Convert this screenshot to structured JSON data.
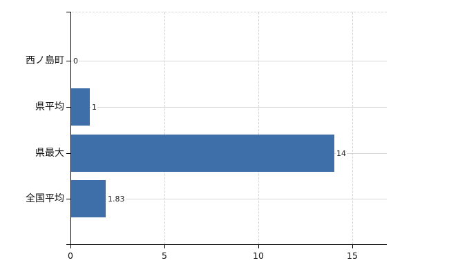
{
  "chart_data": {
    "type": "bar",
    "orientation": "horizontal",
    "title": "",
    "categories": [
      "西ノ島町",
      "県平均",
      "県最大",
      "全国平均"
    ],
    "values": [
      0,
      1,
      14,
      1.83
    ],
    "value_labels": [
      "0",
      "1",
      "14",
      "1.83"
    ],
    "x_ticks": [
      0,
      5,
      10,
      15
    ],
    "x_tick_labels": [
      "0",
      "5",
      "10",
      "15"
    ],
    "xlim": [
      0,
      16.8
    ],
    "grid": "on",
    "legend": "none",
    "bar_color": "#3e6fa8",
    "grid_color": "#d3d8d3",
    "axis_color": "#000000",
    "label_color": "#111111",
    "value_label_color": "#222222",
    "background_color": "#ffffff"
  }
}
